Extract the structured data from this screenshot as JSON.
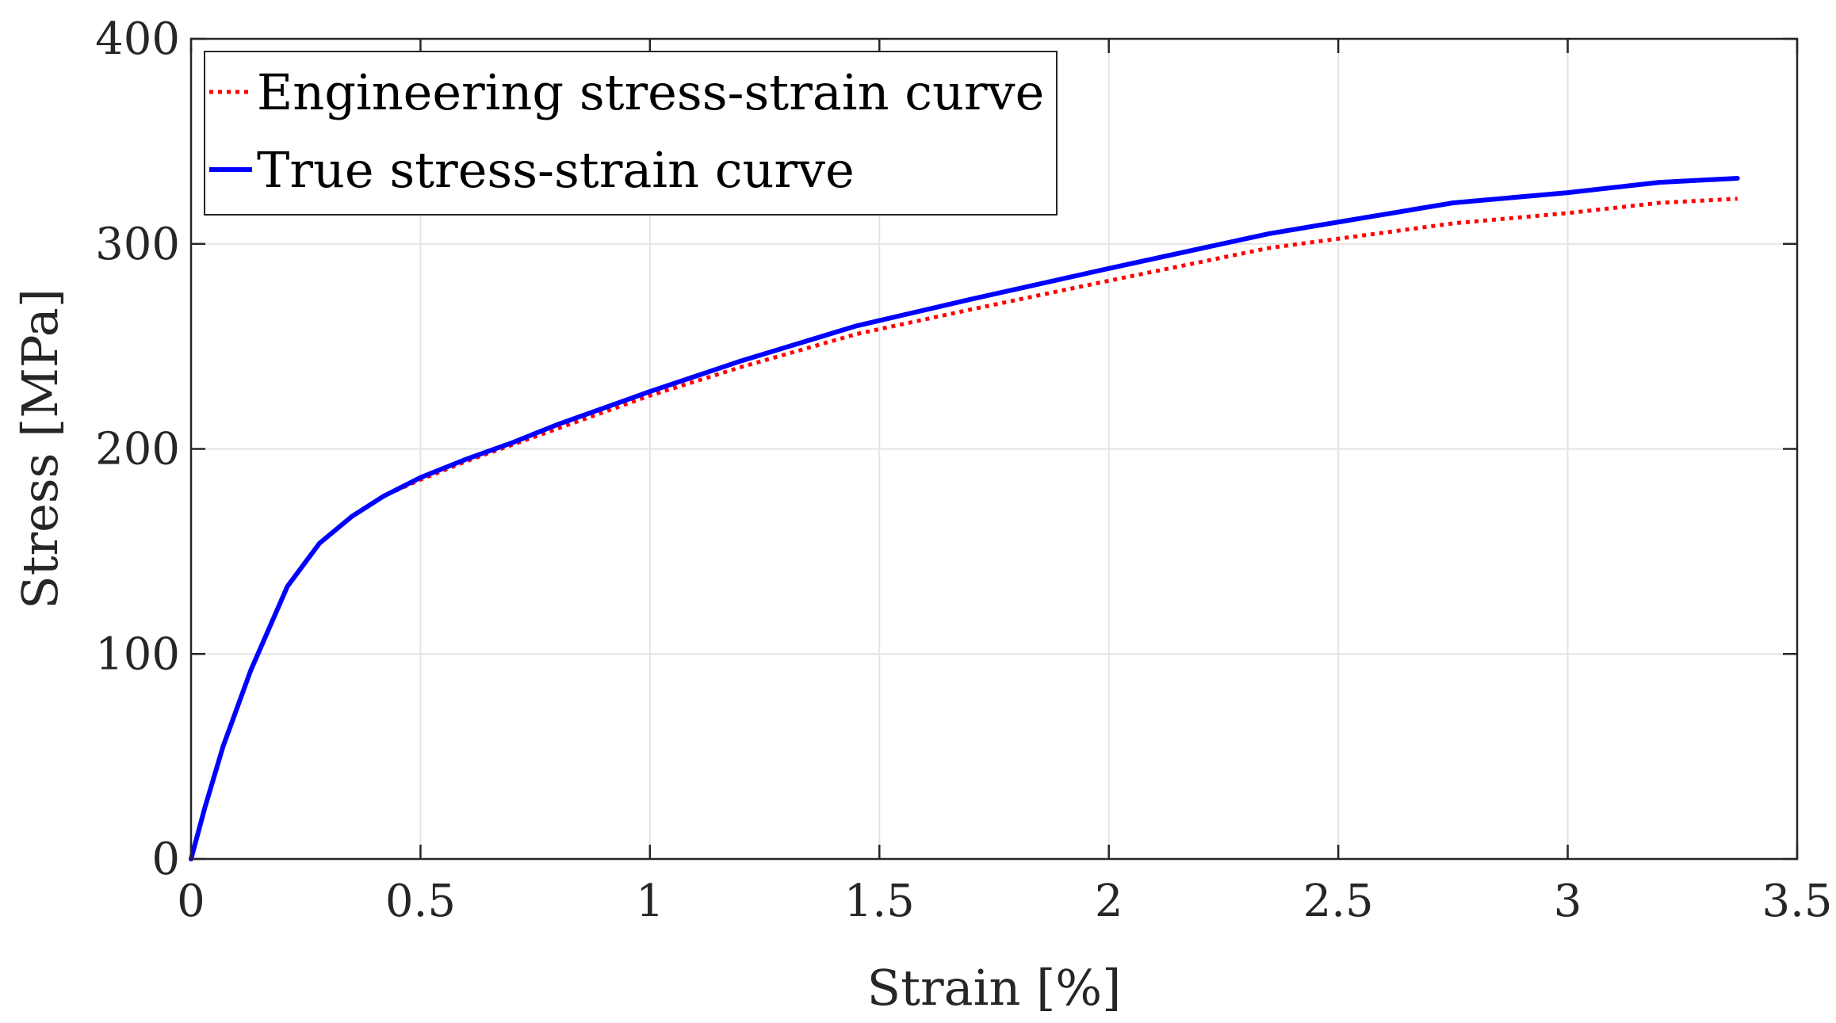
{
  "chart_data": {
    "type": "line",
    "title": "",
    "xlabel": "Strain [%]",
    "ylabel": "Stress [MPa]",
    "xlim": [
      0,
      3.5
    ],
    "ylim": [
      0,
      400
    ],
    "xticks": [
      0,
      0.5,
      1,
      1.5,
      2,
      2.5,
      3,
      3.5
    ],
    "xtick_labels": [
      "0",
      "0.5",
      "1",
      "1.5",
      "2",
      "2.5",
      "3",
      "3.5"
    ],
    "yticks": [
      0,
      100,
      200,
      300,
      400
    ],
    "ytick_labels": [
      "0",
      "100",
      "200",
      "300",
      "400"
    ],
    "grid": true,
    "legend_position": "top-left",
    "series": [
      {
        "name": "Engineering stress-strain curve",
        "color": "#ff0000",
        "style": "dotted",
        "x": [
          0,
          0.03,
          0.07,
          0.13,
          0.21,
          0.28,
          0.35,
          0.42,
          0.5,
          0.6,
          0.7,
          0.8,
          0.9,
          1.0,
          1.2,
          1.45,
          1.7,
          2.0,
          2.35,
          2.75,
          3.0,
          3.2,
          3.37
        ],
        "values": [
          0,
          25,
          55,
          92,
          133,
          154,
          167,
          177,
          185,
          194,
          202,
          210,
          218,
          226,
          240,
          256,
          268,
          282,
          298,
          310,
          315,
          320,
          322
        ]
      },
      {
        "name": "True stress-strain curve",
        "color": "#0000ff",
        "style": "solid",
        "x": [
          0,
          0.03,
          0.07,
          0.13,
          0.21,
          0.28,
          0.35,
          0.42,
          0.5,
          0.6,
          0.7,
          0.8,
          0.9,
          1.0,
          1.2,
          1.45,
          1.7,
          2.0,
          2.35,
          2.75,
          3.0,
          3.2,
          3.37
        ],
        "values": [
          0,
          25,
          55,
          92,
          133,
          154,
          167,
          177,
          186,
          195,
          203,
          212,
          220,
          228,
          243,
          260,
          273,
          288,
          305,
          320,
          325,
          330,
          332
        ]
      }
    ]
  }
}
